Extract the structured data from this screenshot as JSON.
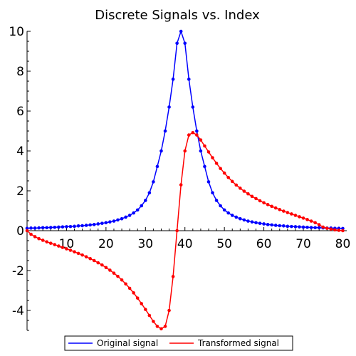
{
  "chart_data": {
    "type": "line",
    "title": "Discrete Signals vs. Index",
    "xlabel": "",
    "ylabel": "",
    "xlim": [
      0,
      81
    ],
    "ylim": [
      -5,
      10
    ],
    "x_ticks": [
      10,
      20,
      30,
      40,
      50,
      60,
      70,
      80
    ],
    "y_ticks": [
      -4,
      -2,
      0,
      2,
      4,
      6,
      8,
      10
    ],
    "grid": false,
    "legend_position": "bottom",
    "series": [
      {
        "name": "Original signal",
        "color": "#0000ff",
        "x": [
          0,
          1,
          2,
          3,
          4,
          5,
          6,
          7,
          8,
          9,
          10,
          11,
          12,
          13,
          14,
          15,
          16,
          17,
          18,
          19,
          20,
          21,
          22,
          23,
          24,
          25,
          26,
          27,
          28,
          29,
          30,
          31,
          32,
          33,
          34,
          35,
          36,
          37,
          38,
          39,
          40,
          41,
          42,
          43,
          44,
          45,
          46,
          47,
          48,
          49,
          50,
          51,
          52,
          53,
          54,
          55,
          56,
          57,
          58,
          59,
          60,
          61,
          62,
          63,
          64,
          65,
          66,
          67,
          68,
          69,
          70,
          71,
          72,
          73,
          74,
          75,
          76,
          77,
          78,
          79,
          80
        ],
        "values": [
          0.12,
          0.13,
          0.13,
          0.14,
          0.15,
          0.15,
          0.16,
          0.17,
          0.18,
          0.19,
          0.2,
          0.21,
          0.22,
          0.24,
          0.25,
          0.27,
          0.29,
          0.31,
          0.34,
          0.37,
          0.4,
          0.44,
          0.48,
          0.54,
          0.6,
          0.68,
          0.77,
          0.89,
          1.04,
          1.25,
          1.52,
          1.9,
          2.45,
          3.22,
          4.0,
          5.0,
          6.2,
          7.6,
          9.4,
          10.0,
          9.4,
          7.6,
          6.2,
          5.0,
          4.0,
          3.22,
          2.45,
          1.9,
          1.52,
          1.25,
          1.04,
          0.89,
          0.77,
          0.68,
          0.6,
          0.54,
          0.48,
          0.44,
          0.4,
          0.37,
          0.34,
          0.31,
          0.29,
          0.27,
          0.25,
          0.24,
          0.22,
          0.21,
          0.2,
          0.19,
          0.18,
          0.17,
          0.16,
          0.15,
          0.15,
          0.14,
          0.13,
          0.13,
          0.12,
          0.12,
          0.11
        ]
      },
      {
        "name": "Transformed signal",
        "color": "#ff0000",
        "x": [
          0,
          1,
          2,
          3,
          4,
          5,
          6,
          7,
          8,
          9,
          10,
          11,
          12,
          13,
          14,
          15,
          16,
          17,
          18,
          19,
          20,
          21,
          22,
          23,
          24,
          25,
          26,
          27,
          28,
          29,
          30,
          31,
          32,
          33,
          34,
          35,
          36,
          37,
          38,
          39,
          40,
          41,
          42,
          43,
          44,
          45,
          46,
          47,
          48,
          49,
          50,
          51,
          52,
          53,
          54,
          55,
          56,
          57,
          58,
          59,
          60,
          61,
          62,
          63,
          64,
          65,
          66,
          67,
          68,
          69,
          70,
          71,
          72,
          73,
          74,
          75,
          76,
          77,
          78,
          79,
          80
        ],
        "values": [
          0.0,
          -0.18,
          -0.3,
          -0.4,
          -0.48,
          -0.56,
          -0.63,
          -0.7,
          -0.77,
          -0.84,
          -0.91,
          -0.98,
          -1.06,
          -1.14,
          -1.22,
          -1.31,
          -1.4,
          -1.5,
          -1.61,
          -1.72,
          -1.85,
          -1.98,
          -2.13,
          -2.29,
          -2.47,
          -2.67,
          -2.89,
          -3.12,
          -3.38,
          -3.66,
          -3.95,
          -4.25,
          -4.55,
          -4.8,
          -4.92,
          -4.8,
          -4.0,
          -2.3,
          0.0,
          2.3,
          4.0,
          4.8,
          4.92,
          4.8,
          4.55,
          4.25,
          3.95,
          3.66,
          3.38,
          3.12,
          2.89,
          2.67,
          2.47,
          2.29,
          2.13,
          1.98,
          1.85,
          1.72,
          1.61,
          1.5,
          1.4,
          1.31,
          1.22,
          1.14,
          1.06,
          0.98,
          0.91,
          0.84,
          0.77,
          0.7,
          0.63,
          0.56,
          0.48,
          0.4,
          0.3,
          0.18,
          0.12,
          0.08,
          0.04,
          0.02,
          0.0
        ]
      }
    ]
  }
}
